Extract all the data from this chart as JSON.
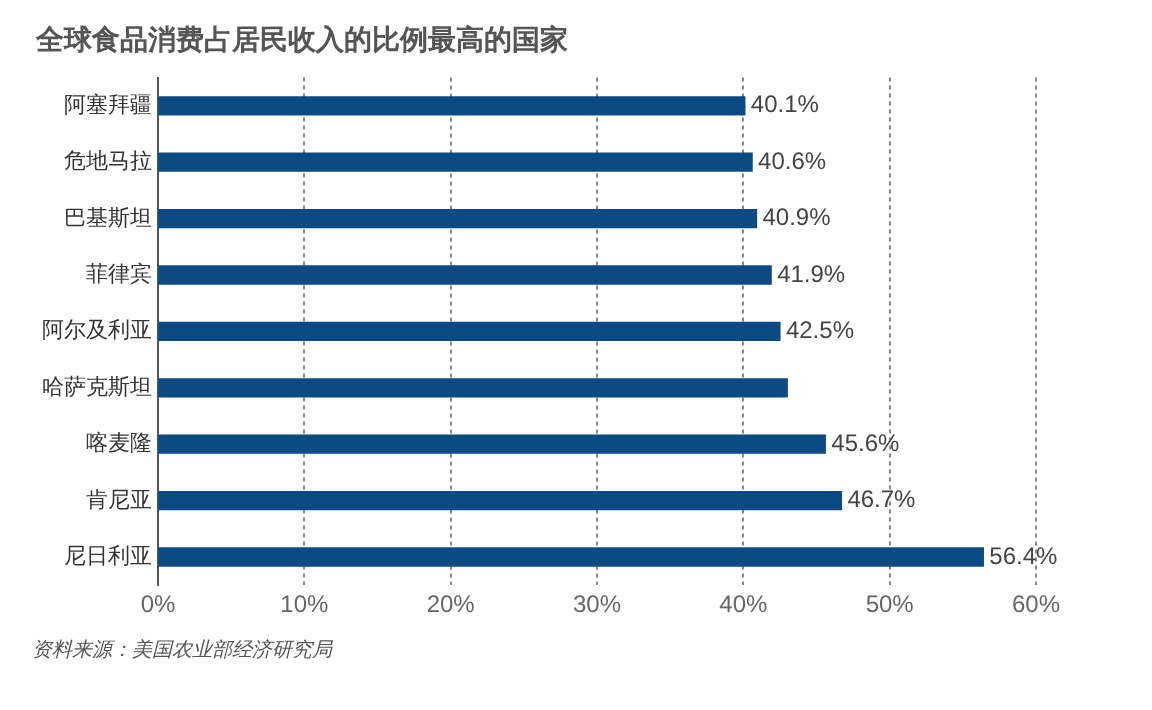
{
  "chart_data": {
    "type": "bar",
    "orientation": "horizontal",
    "title": "全球食品消费占居民收入的比例最高的国家",
    "categories": [
      "阿塞拜疆",
      "危地马拉",
      "巴基斯坦",
      "菲律宾",
      "阿尔及利亚",
      "哈萨克斯坦",
      "喀麦隆",
      "肯尼亚",
      "尼日利亚"
    ],
    "values": [
      40.1,
      40.6,
      40.9,
      41.9,
      42.5,
      43.0,
      45.6,
      46.7,
      56.4
    ],
    "value_labels": [
      "40.1%",
      "40.6%",
      "40.9%",
      "41.9%",
      "42.5%",
      null,
      "45.6%",
      "46.7%",
      "56.4%"
    ],
    "color": "#0b4a82",
    "xlim": [
      0,
      60
    ],
    "xticks": [
      {
        "value": 0,
        "label": "0%"
      },
      {
        "value": 10,
        "label": "10%"
      },
      {
        "value": 20,
        "label": "20%"
      },
      {
        "value": 30,
        "label": "30%"
      },
      {
        "value": 40,
        "label": "40%"
      },
      {
        "value": 50,
        "label": "50%"
      },
      {
        "value": 60,
        "label": "60%"
      }
    ],
    "grid": "x",
    "legend": false,
    "annotations": [
      "资料来源：美国农业部经济研究局"
    ]
  }
}
